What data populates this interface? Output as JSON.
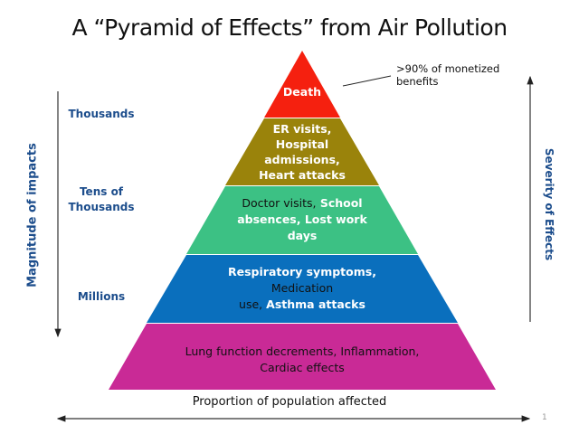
{
  "title": "A “Pyramid of Effects” from Air Pollution",
  "annotation": {
    "line1": ">90% of monetized",
    "line2": "benefits"
  },
  "layers": [
    {
      "lines": [
        "Death"
      ],
      "color": "#f5200f"
    },
    {
      "lines": [
        "ER visits,",
        "Hospital",
        "admissions,",
        "Heart attacks"
      ],
      "color": "#9a830b"
    },
    {
      "parts": [
        "Doctor visits,",
        " School",
        "absences,  Lost work",
        "days"
      ],
      "color": "#3cc184"
    },
    {
      "parts": [
        "Respiratory symptoms,",
        "Medication",
        "use,",
        "Asthma attacks"
      ],
      "color": "#0a6fbd"
    },
    {
      "lines": [
        "Lung function decrements, Inflammation,",
        "Cardiac effects"
      ],
      "color": "#c92a96"
    }
  ],
  "magnitudes": [
    "Thousands",
    "Tens of",
    "Thousands",
    "Millions"
  ],
  "left_axis_label": "Magnitude of impacts",
  "right_axis_label": "Severity of Effects",
  "bottom_axis_label": "Proportion of population affected",
  "page_number": "1",
  "colors": {
    "axis_text": "#1c4d8c",
    "arrows": "#333333"
  }
}
